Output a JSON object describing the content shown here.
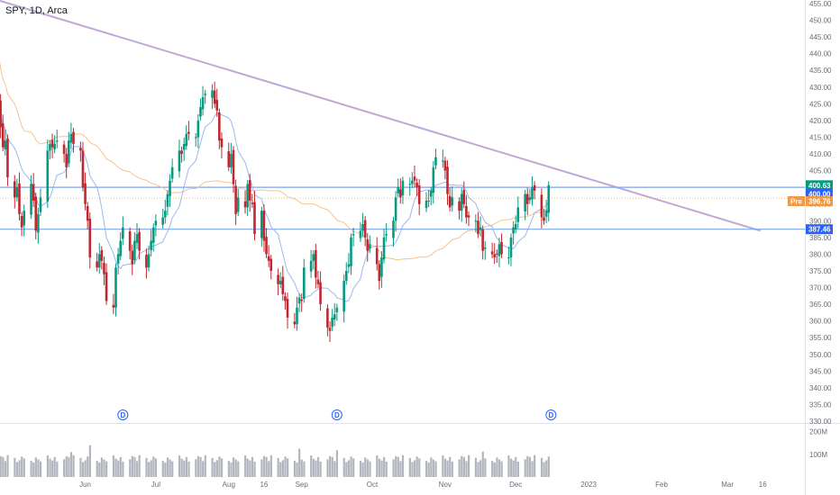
{
  "chart_data": {
    "type": "candlestick",
    "title": "SPY, 1D, Arca",
    "colors": {
      "up": "#089981",
      "down": "#c2272f",
      "sma_fast": "#9bb7ef",
      "sma_slow": "#f6c28b",
      "trendline": "#c0a7d8",
      "hline": "#7aa6ee",
      "volume": "#b2b5be"
    },
    "ylim": [
      330,
      455
    ],
    "y_ticks": [
      "330.00",
      "335.00",
      "340.00",
      "345.00",
      "350.00",
      "355.00",
      "360.00",
      "365.00",
      "370.00",
      "375.00",
      "380.00",
      "385.00",
      "390.00",
      "395.00",
      "400.00",
      "405.00",
      "410.00",
      "415.00",
      "420.00",
      "425.00",
      "430.00",
      "435.00",
      "440.00",
      "445.00",
      "450.00",
      "455.00"
    ],
    "x_labels": [
      "Jun",
      "Jul",
      "Aug",
      "16",
      "Sep",
      "Oct",
      "Nov",
      "Dec",
      "2023",
      "Feb",
      "Mar",
      "16"
    ],
    "x_label_dates": [
      "2022-06-01",
      "2022-07-01",
      "2022-08-01",
      "2022-08-16",
      "2022-09-01",
      "2022-10-01",
      "2022-11-01",
      "2022-12-01",
      "2023-01-01",
      "2023-02-01",
      "2023-03-01",
      "2023-03-16"
    ],
    "series_start": "2022-04-25",
    "closes": [
      426,
      418,
      412,
      414,
      403,
      397,
      400,
      392,
      388,
      393,
      401,
      396,
      387,
      392,
      397,
      411,
      413,
      412,
      413,
      414,
      410,
      406,
      414,
      416,
      413,
      411,
      400,
      395,
      390,
      379,
      376,
      380,
      378,
      374,
      366,
      364,
      376,
      380,
      384,
      388,
      381,
      377,
      384,
      386,
      381,
      376,
      380,
      384,
      388,
      390,
      391,
      393,
      398,
      402,
      406,
      411,
      410,
      413,
      416,
      416,
      415,
      420,
      424,
      427,
      428,
      429,
      425,
      423,
      414,
      412,
      406,
      410,
      401,
      392,
      397,
      394,
      401,
      396,
      395,
      386,
      393,
      384,
      380,
      378,
      375,
      371,
      372,
      368,
      366,
      361,
      359,
      364,
      367,
      366,
      376,
      378,
      380,
      373,
      371,
      365,
      358,
      357,
      361,
      362,
      364,
      372,
      375,
      377,
      385,
      386,
      387,
      389,
      385,
      381,
      383,
      377,
      372,
      379,
      385,
      386,
      390,
      397,
      400,
      397,
      402,
      401,
      402,
      402,
      400,
      395,
      396,
      396,
      399,
      406,
      409,
      408,
      405,
      398,
      394,
      397,
      393,
      398,
      395,
      391,
      391,
      390,
      386,
      388,
      381,
      382,
      380,
      379,
      380,
      383,
      380,
      379,
      385,
      388,
      389,
      394,
      398,
      395,
      397,
      400,
      399,
      391,
      390,
      393,
      400.63
    ],
    "sma_fast_window": 10,
    "sma_slow_window": 50,
    "trendline": {
      "start_date": "2022-04-25",
      "start_value": 456.0,
      "end_date": "2023-03-15",
      "end_value": 387.0
    },
    "h_levels": [
      400.0,
      387.46
    ],
    "dividend_marker_dates": [
      "2022-06-17",
      "2022-09-16",
      "2022-12-16"
    ],
    "dividend_marker_label": "D",
    "price_tags": [
      {
        "value": 400.63,
        "text": "400.63",
        "color": "#089981"
      },
      {
        "value": 400.0,
        "text": "400.00",
        "color": "#2962ff"
      },
      {
        "value": 387.46,
        "text": "387.46",
        "color": "#2962ff"
      }
    ],
    "pre_tag": {
      "value": 396.76,
      "label": "Pre",
      "text": "396.76",
      "color": "#f09a48"
    },
    "volume_ticks": [
      "200M",
      "100M"
    ],
    "volume_pattern": [
      78,
      92,
      88,
      70,
      96,
      84,
      66,
      74,
      90,
      82,
      71,
      64,
      86,
      77,
      69,
      95,
      81,
      73,
      88,
      68
    ],
    "volume_highlight": [
      {
        "index": 0,
        "value": 130
      },
      {
        "index": 23,
        "value": 110
      },
      {
        "index": 29,
        "value": 140
      },
      {
        "index": 92,
        "value": 125
      },
      {
        "index": 104,
        "value": 118
      },
      {
        "index": 148,
        "value": 112
      }
    ]
  }
}
